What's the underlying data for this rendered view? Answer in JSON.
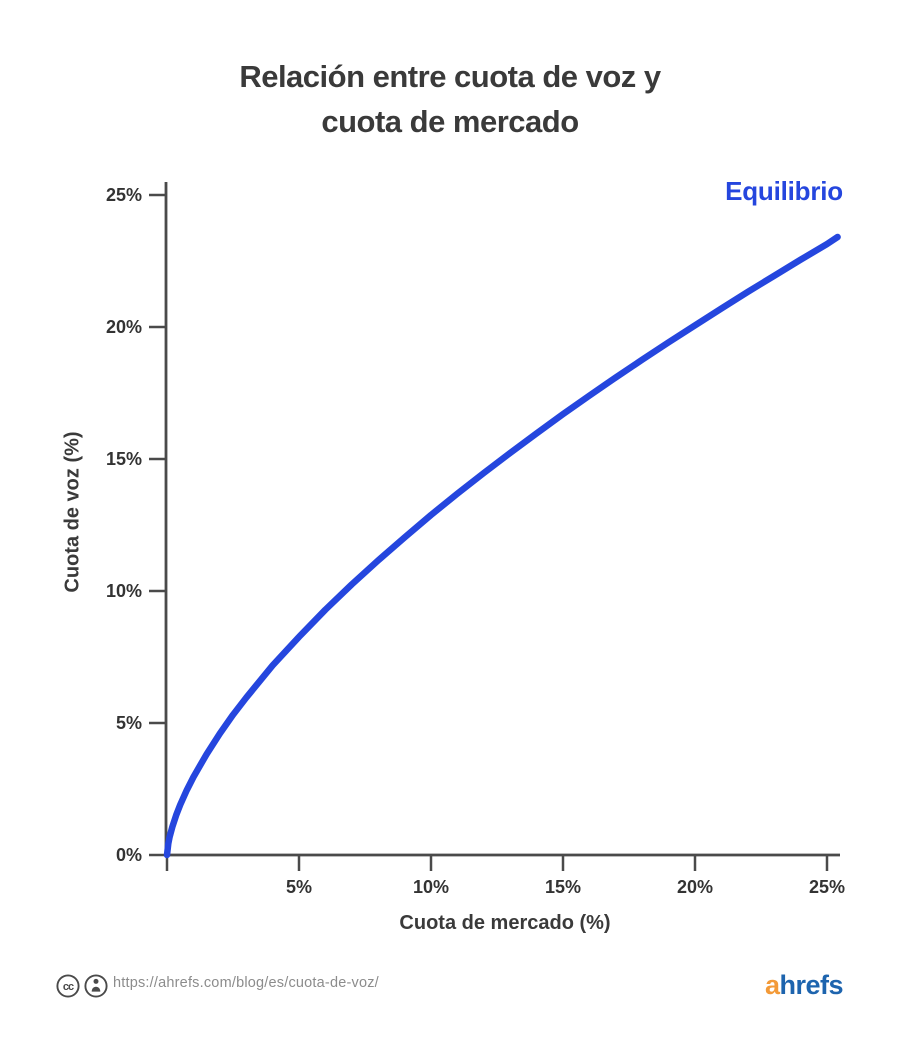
{
  "title": {
    "line1": "Relación entre cuota de voz y",
    "line2": "cuota de mercado"
  },
  "series_label": "Equilibrio",
  "axes": {
    "x_label": "Cuota de mercado (%)",
    "y_label": "Cuota de voz (%)",
    "x_tick_labels": [
      "5%",
      "10%",
      "15%",
      "20%",
      "25%"
    ],
    "y_tick_labels": [
      "0%",
      "5%",
      "10%",
      "15%",
      "20%",
      "25%"
    ]
  },
  "footer": {
    "license_icons": [
      "cc-icon",
      "attribution-icon"
    ],
    "url": "https://ahrefs.com/blog/es/cuota-de-voz/",
    "logo": {
      "first": "a",
      "rest": "hrefs"
    }
  },
  "colors": {
    "accent": "#2546DE",
    "title_text": "#3A3A3A",
    "tick_text": "#333333",
    "axis_line": "#4A4A4A",
    "footer_text": "#8C8C8C",
    "license_icon": "#4A4A4A",
    "logo_orange": "#F39A38",
    "logo_blue": "#1D64AE"
  },
  "chart_data": {
    "type": "line",
    "title": "Relación entre cuota de voz y cuota de mercado",
    "xlabel": "Cuota de mercado (%)",
    "ylabel": "Cuota de voz (%)",
    "xlim": [
      0,
      25
    ],
    "ylim": [
      0,
      25
    ],
    "x_tick_values": [
      0,
      5,
      10,
      15,
      20,
      25
    ],
    "y_tick_values": [
      0,
      5,
      10,
      15,
      20,
      25
    ],
    "grid": false,
    "legend_position": "top-right",
    "series": [
      {
        "name": "Equilibrio",
        "points": [
          [
            0,
            0
          ],
          [
            0.05,
            0.43
          ],
          [
            0.1,
            0.68
          ],
          [
            0.2,
            1.06
          ],
          [
            0.35,
            1.51
          ],
          [
            0.5,
            1.9
          ],
          [
            0.75,
            2.46
          ],
          [
            1,
            2.95
          ],
          [
            1.5,
            3.82
          ],
          [
            2,
            4.6
          ],
          [
            2.5,
            5.31
          ],
          [
            3,
            5.96
          ],
          [
            4,
            7.18
          ],
          [
            5,
            8.26
          ],
          [
            6,
            9.29
          ],
          [
            7,
            10.25
          ],
          [
            8,
            11.16
          ],
          [
            9,
            12.03
          ],
          [
            10,
            12.88
          ],
          [
            11,
            13.69
          ],
          [
            12,
            14.47
          ],
          [
            13,
            15.23
          ],
          [
            14,
            15.97
          ],
          [
            15,
            16.7
          ],
          [
            16,
            17.4
          ],
          [
            17,
            18.09
          ],
          [
            18,
            18.76
          ],
          [
            19,
            19.42
          ],
          [
            20,
            20.06
          ],
          [
            21,
            20.7
          ],
          [
            22,
            21.33
          ],
          [
            23,
            21.94
          ],
          [
            24,
            22.55
          ],
          [
            25,
            23.14
          ],
          [
            25.4,
            23.41
          ]
        ]
      }
    ]
  }
}
